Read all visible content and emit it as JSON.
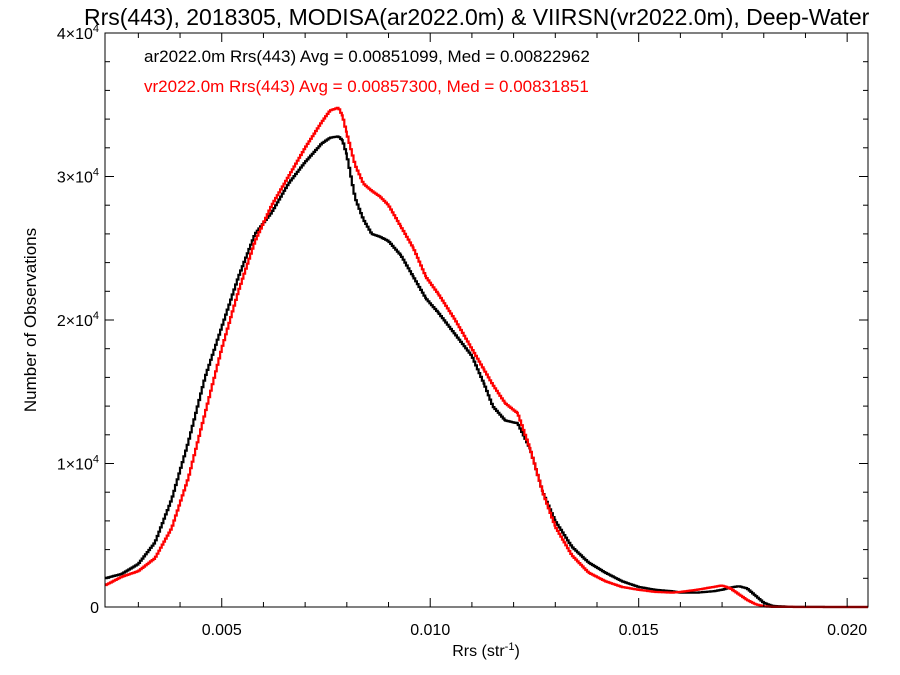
{
  "chart_data": {
    "type": "line",
    "title": "Rrs(443), 2018305, MODISA(ar2022.0m) & VIIRSN(vr2022.0m), Deep-Water",
    "xlabel": "Rrs (str",
    "xlabel_sup": "-1",
    "xlabel_end": ")",
    "ylabel": "Number of Observations",
    "xlim": [
      0.0022,
      0.0205
    ],
    "ylim": [
      0,
      40000
    ],
    "x_ticks": [
      {
        "value": 0.005,
        "label": "0.005"
      },
      {
        "value": 0.01,
        "label": "0.010"
      },
      {
        "value": 0.015,
        "label": "0.015"
      },
      {
        "value": 0.02,
        "label": "0.020"
      }
    ],
    "y_ticks": [
      {
        "value": 0,
        "mant": "0",
        "exp": ""
      },
      {
        "value": 10000,
        "mant": "1×10",
        "exp": "4"
      },
      {
        "value": 20000,
        "mant": "2×10",
        "exp": "4"
      },
      {
        "value": 30000,
        "mant": "3×10",
        "exp": "4"
      },
      {
        "value": 40000,
        "mant": "4×10",
        "exp": "4"
      }
    ],
    "annotations": [
      "ar2022.0m Rrs(443) Avg = 0.00851099, Med = 0.00822962",
      "vr2022.0m Rrs(443) Avg = 0.00857300, Med = 0.00831851"
    ],
    "series": [
      {
        "name": "ar2022.0m",
        "color": "#000000",
        "x": [
          0.0022,
          0.0026,
          0.003,
          0.0034,
          0.0038,
          0.0042,
          0.0046,
          0.005,
          0.0054,
          0.0058,
          0.0062,
          0.0066,
          0.007,
          0.0074,
          0.0076,
          0.0078,
          0.0079,
          0.008,
          0.0082,
          0.0084,
          0.0086,
          0.0088,
          0.009,
          0.0093,
          0.0096,
          0.0099,
          0.0102,
          0.0106,
          0.011,
          0.0113,
          0.0115,
          0.0118,
          0.0121,
          0.0124,
          0.0127,
          0.013,
          0.0134,
          0.0138,
          0.0142,
          0.0146,
          0.015,
          0.0154,
          0.0158,
          0.016,
          0.0164,
          0.0168,
          0.017,
          0.0172,
          0.0174,
          0.0176,
          0.0178,
          0.018,
          0.0182,
          0.0186,
          0.019,
          0.0205
        ],
        "y": [
          2000,
          2300,
          3000,
          4500,
          7500,
          11500,
          16000,
          19500,
          23000,
          26000,
          27500,
          29500,
          31000,
          32300,
          32700,
          32800,
          32500,
          31500,
          28500,
          27000,
          26000,
          25800,
          25500,
          24500,
          23000,
          21500,
          20500,
          19000,
          17500,
          15500,
          14000,
          13000,
          12800,
          11000,
          8000,
          6000,
          4200,
          3100,
          2400,
          1800,
          1400,
          1200,
          1100,
          1000,
          1000,
          1100,
          1200,
          1350,
          1450,
          1300,
          800,
          300,
          80,
          20,
          5,
          0
        ]
      },
      {
        "name": "vr2022.0m",
        "color": "#ff0000",
        "x": [
          0.0022,
          0.0026,
          0.003,
          0.0034,
          0.0038,
          0.0042,
          0.0046,
          0.005,
          0.0054,
          0.0058,
          0.0062,
          0.0066,
          0.007,
          0.0074,
          0.0076,
          0.0078,
          0.0079,
          0.008,
          0.0082,
          0.0084,
          0.0086,
          0.0088,
          0.009,
          0.0093,
          0.0096,
          0.0099,
          0.0102,
          0.0106,
          0.011,
          0.0113,
          0.0115,
          0.0118,
          0.0121,
          0.0124,
          0.0127,
          0.013,
          0.0134,
          0.0138,
          0.0142,
          0.0146,
          0.015,
          0.0154,
          0.0158,
          0.016,
          0.0164,
          0.0168,
          0.017,
          0.0172,
          0.0174,
          0.0176,
          0.0178,
          0.018,
          0.0182,
          0.0186,
          0.019,
          0.0205
        ],
        "y": [
          1500,
          2100,
          2500,
          3400,
          5500,
          9000,
          13500,
          18000,
          22000,
          25500,
          28000,
          30000,
          32000,
          33800,
          34600,
          34800,
          34200,
          33000,
          30800,
          29500,
          29000,
          28600,
          28000,
          26500,
          25000,
          23000,
          21800,
          20000,
          18000,
          16500,
          15500,
          14200,
          13500,
          11000,
          8000,
          5600,
          3600,
          2400,
          1800,
          1400,
          1200,
          1050,
          1000,
          1050,
          1200,
          1400,
          1500,
          1300,
          900,
          500,
          200,
          50,
          10,
          5,
          0,
          0
        ]
      }
    ]
  }
}
